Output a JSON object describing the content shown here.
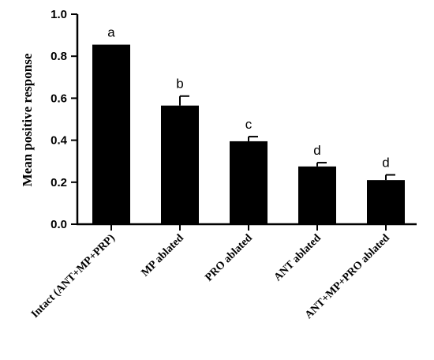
{
  "chart_data": {
    "type": "bar",
    "title": "",
    "xlabel": "",
    "ylabel": "Mean positive response",
    "ylim": [
      0,
      1.0
    ],
    "yticks": [
      "0.0",
      "0.2",
      "0.4",
      "0.6",
      "0.8",
      "1.0"
    ],
    "grid": false,
    "categories": [
      "Intact (ANT+MP+PRP)",
      "MP ablated",
      "PRO ablated",
      "ANT ablated",
      "ANT+MP+PRO ablated"
    ],
    "values": [
      0.855,
      0.565,
      0.395,
      0.275,
      0.21
    ],
    "errors": [
      0.0,
      0.045,
      0.022,
      0.018,
      0.025
    ],
    "annotations": [
      "a",
      "b",
      "c",
      "d",
      "d"
    ],
    "bar_color": "#000000"
  }
}
